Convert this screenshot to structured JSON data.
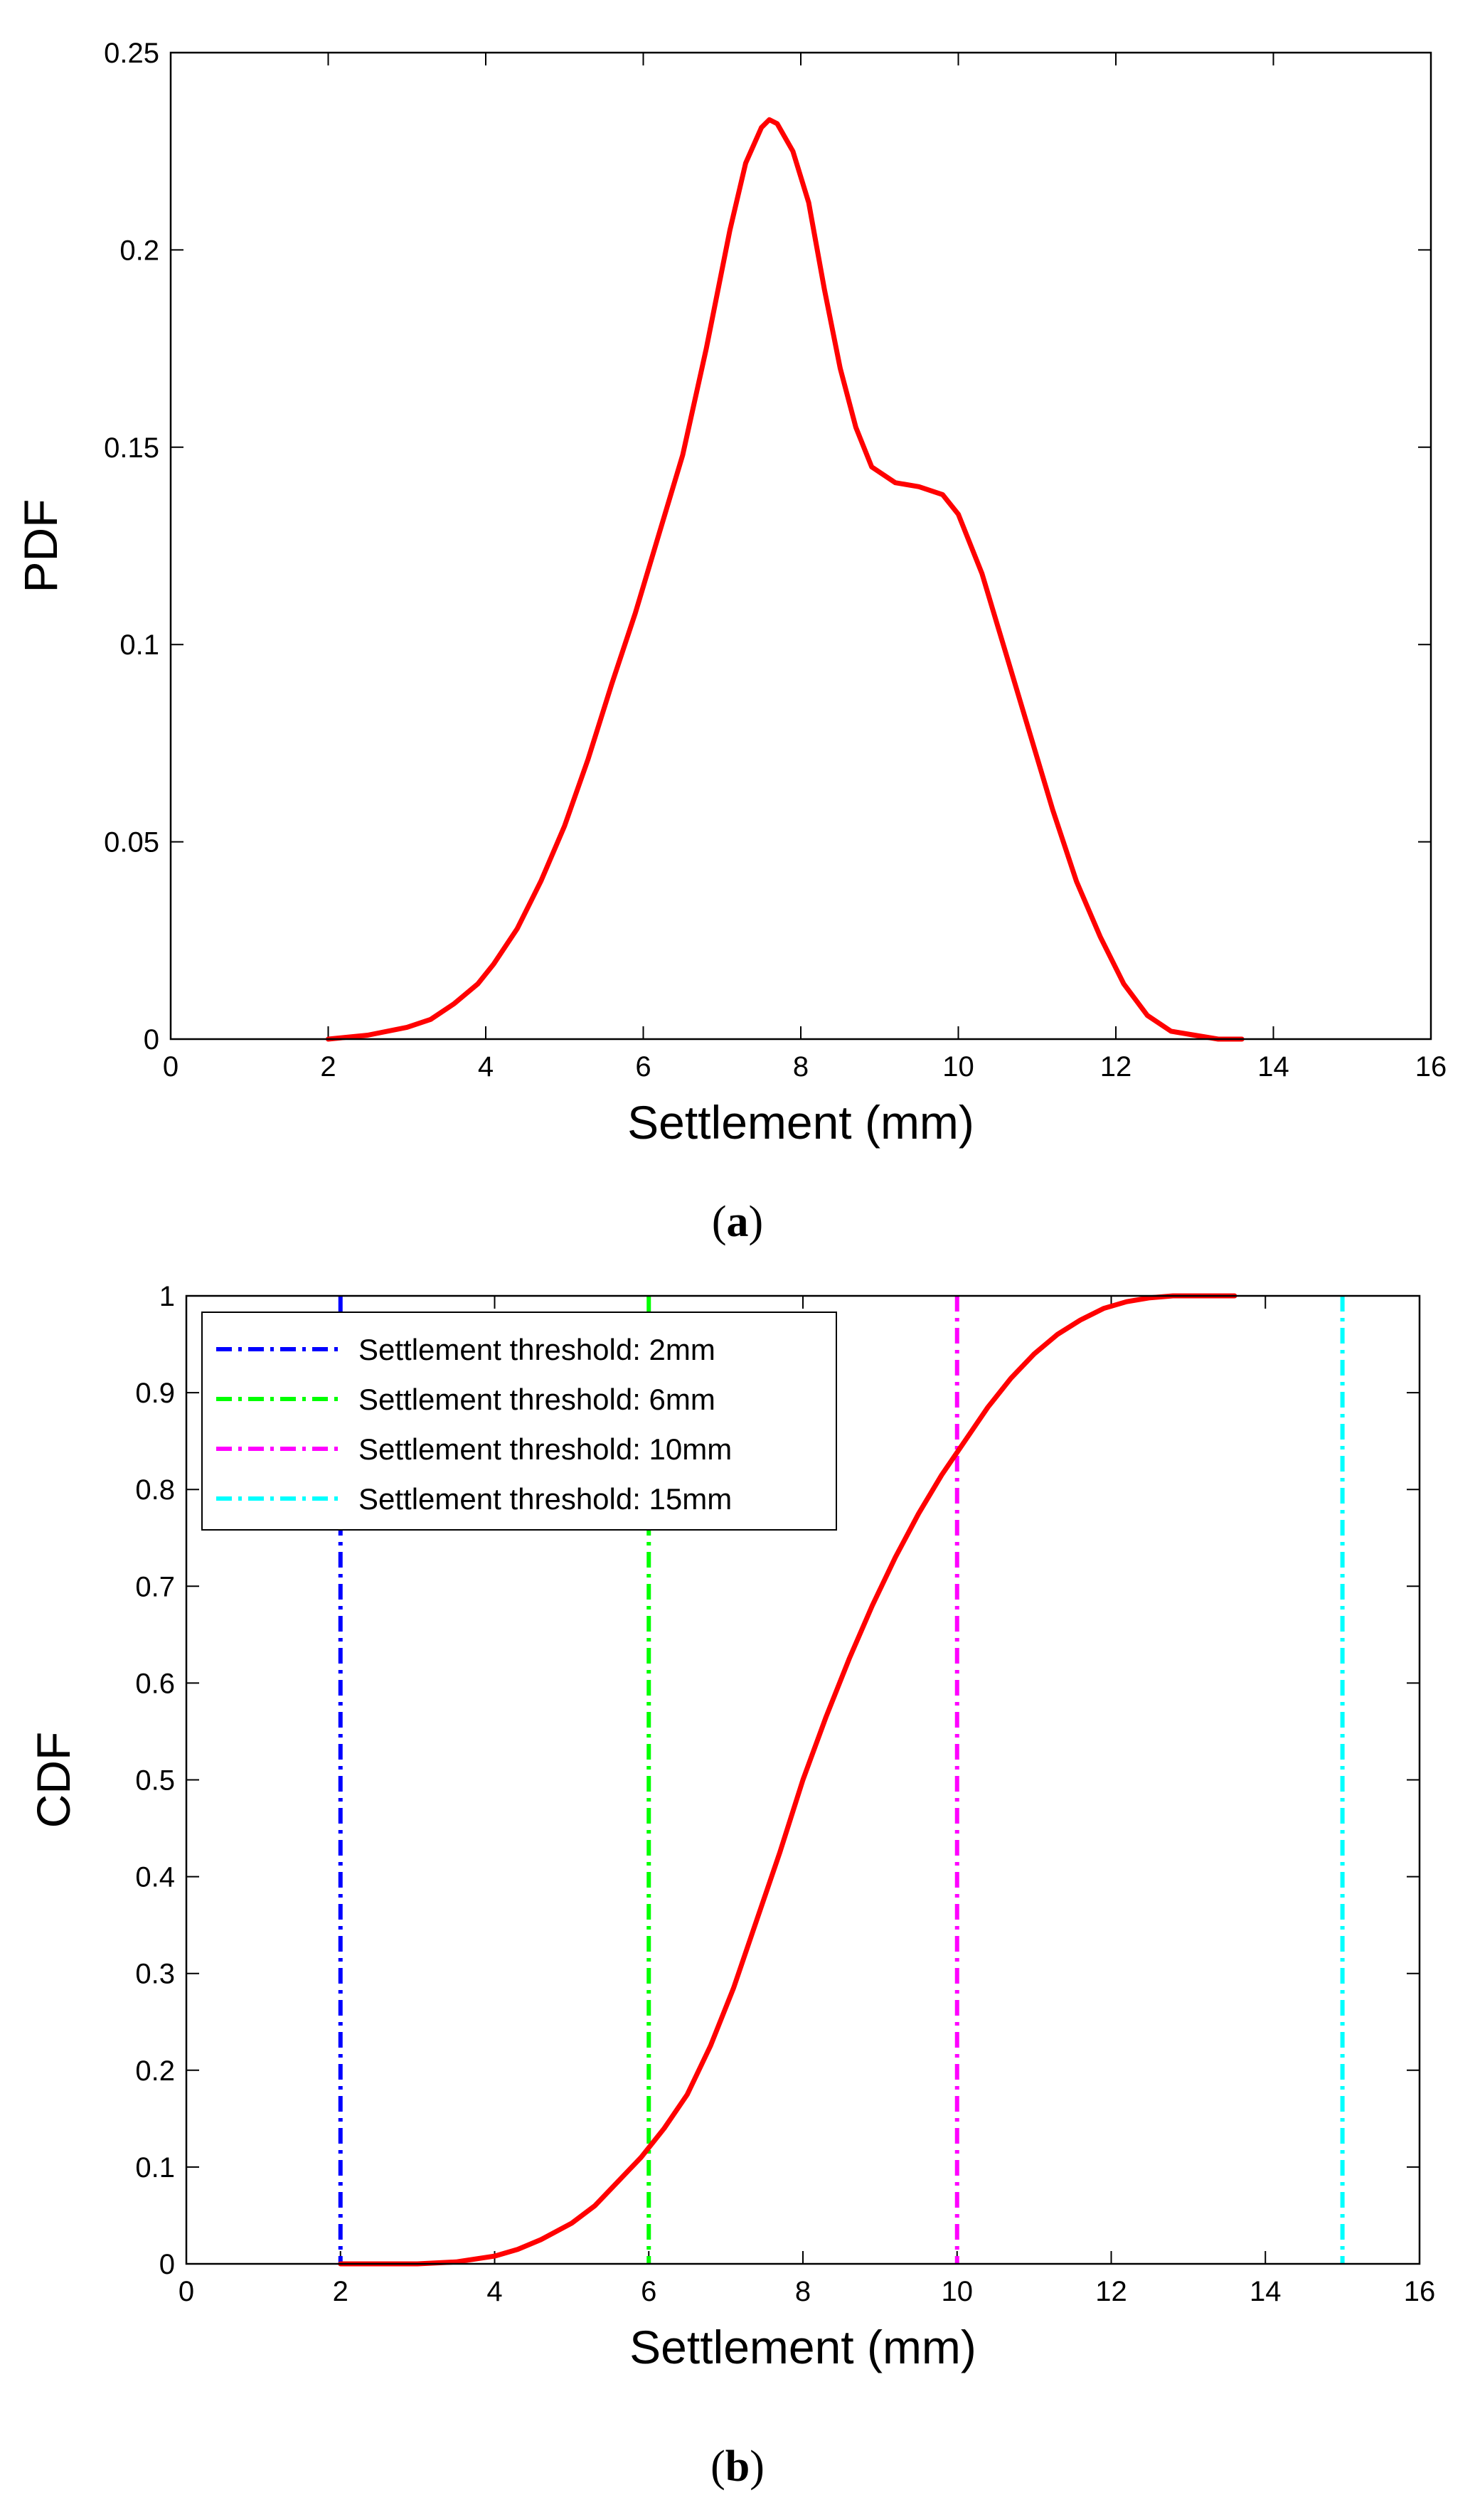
{
  "chart_data": [
    {
      "type": "line",
      "panel_label": "a",
      "title": "",
      "xlabel": "Settlement (mm)",
      "ylabel": "PDF",
      "xlim": [
        0,
        16
      ],
      "ylim": [
        0,
        0.25
      ],
      "xticks": [
        "0",
        "2",
        "4",
        "6",
        "8",
        "10",
        "12",
        "14",
        "16"
      ],
      "yticks": [
        "0",
        "0.05",
        "0.1",
        "0.15",
        "0.2",
        "0.25"
      ],
      "grid": false,
      "series": [
        {
          "name": "PDF",
          "color": "#ff0000",
          "x": [
            2.0,
            2.5,
            3.0,
            3.3,
            3.6,
            3.9,
            4.1,
            4.4,
            4.7,
            5.0,
            5.3,
            5.6,
            5.9,
            6.2,
            6.5,
            6.8,
            7.1,
            7.3,
            7.5,
            7.6,
            7.7,
            7.9,
            8.1,
            8.3,
            8.5,
            8.7,
            8.9,
            9.2,
            9.5,
            9.8,
            10.0,
            10.3,
            10.6,
            10.9,
            11.2,
            11.5,
            11.8,
            12.1,
            12.4,
            12.7,
            13.0,
            13.3,
            13.6
          ],
          "y": [
            0.0,
            0.001,
            0.003,
            0.005,
            0.009,
            0.014,
            0.019,
            0.028,
            0.04,
            0.054,
            0.071,
            0.09,
            0.108,
            0.128,
            0.148,
            0.175,
            0.205,
            0.222,
            0.231,
            0.233,
            0.232,
            0.225,
            0.212,
            0.19,
            0.17,
            0.155,
            0.145,
            0.141,
            0.14,
            0.138,
            0.133,
            0.118,
            0.098,
            0.078,
            0.058,
            0.04,
            0.026,
            0.014,
            0.006,
            0.002,
            0.001,
            0.0,
            0.0
          ]
        }
      ]
    },
    {
      "type": "line",
      "panel_label": "b",
      "title": "",
      "xlabel": "Settlement (mm)",
      "ylabel": "CDF",
      "xlim": [
        0,
        16
      ],
      "ylim": [
        0,
        1
      ],
      "xticks": [
        "0",
        "2",
        "4",
        "6",
        "8",
        "10",
        "12",
        "14",
        "16"
      ],
      "yticks": [
        "0",
        "0.1",
        "0.2",
        "0.3",
        "0.4",
        "0.5",
        "0.6",
        "0.7",
        "0.8",
        "0.9",
        "1"
      ],
      "grid": false,
      "legend_position": "top-left",
      "series": [
        {
          "name": "CDF",
          "color": "#ff0000",
          "x": [
            2.0,
            3.0,
            3.5,
            4.0,
            4.3,
            4.6,
            5.0,
            5.3,
            5.6,
            5.9,
            6.2,
            6.5,
            6.8,
            7.1,
            7.4,
            7.7,
            8.0,
            8.3,
            8.6,
            8.9,
            9.2,
            9.5,
            9.8,
            10.1,
            10.4,
            10.7,
            11.0,
            11.3,
            11.6,
            11.9,
            12.2,
            12.5,
            12.8,
            13.2,
            13.6
          ],
          "y": [
            0.0,
            0.0,
            0.002,
            0.008,
            0.015,
            0.025,
            0.042,
            0.06,
            0.085,
            0.11,
            0.14,
            0.175,
            0.225,
            0.285,
            0.355,
            0.425,
            0.5,
            0.565,
            0.625,
            0.68,
            0.73,
            0.775,
            0.815,
            0.85,
            0.885,
            0.915,
            0.94,
            0.96,
            0.975,
            0.987,
            0.994,
            0.998,
            1.0,
            1.0,
            1.0
          ]
        }
      ],
      "thresholds": [
        {
          "label": "Settlement threshold: 2mm",
          "value": 2,
          "color": "#0000ff"
        },
        {
          "label": "Settlement threshold: 6mm",
          "value": 6,
          "color": "#00ff00"
        },
        {
          "label": "Settlement threshold: 10mm",
          "value": 10,
          "color": "#ff00ff"
        },
        {
          "label": "Settlement threshold: 15mm",
          "value": 15,
          "color": "#00ffff"
        }
      ]
    }
  ]
}
